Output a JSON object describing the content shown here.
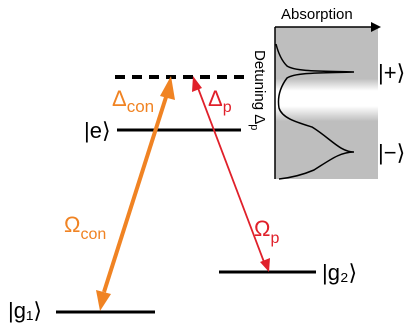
{
  "levels": {
    "ground1": "|g₁⟩",
    "ground2": "|g₂⟩",
    "excited": "|e⟩"
  },
  "couplings": {
    "control_rabi": "Ω",
    "control_rabi_sub": "con",
    "control_detuning": "Δ",
    "control_detuning_sub": "con",
    "probe_rabi": "Ω",
    "probe_rabi_sub": "p",
    "probe_detuning": "Δ",
    "probe_detuning_sub": "p"
  },
  "inset": {
    "x_axis_label": "Absorption",
    "y_axis_label": "Detuning Δ",
    "y_axis_label_sub": "p",
    "peak_upper": "|+⟩",
    "peak_lower": "|−⟩"
  },
  "colors": {
    "control": "#F08323",
    "probe": "#E0202A",
    "level_line": "#000000",
    "inset_fill": "#BEBEBE"
  }
}
